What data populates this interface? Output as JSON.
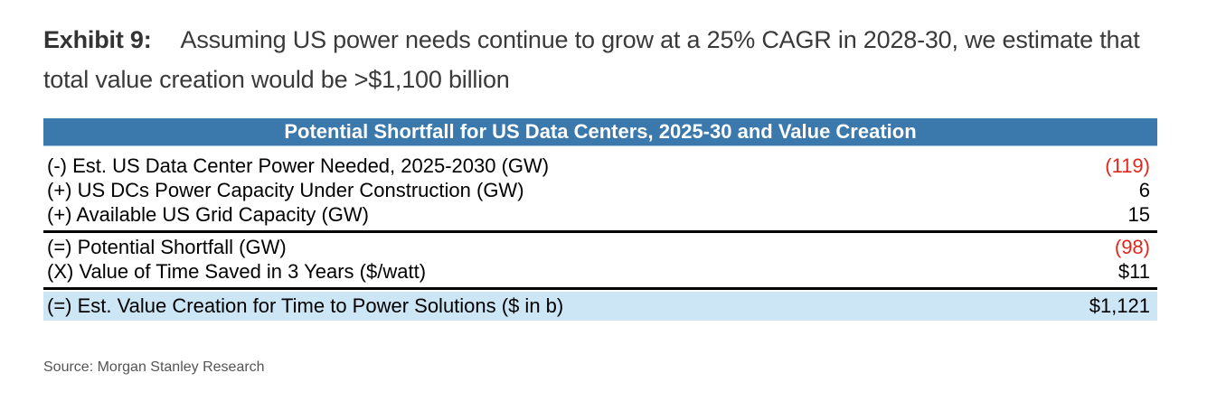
{
  "exhibit": {
    "label": "Exhibit 9:",
    "title": "Assuming US power needs continue to grow at a 25% CAGR in 2028-30, we estimate that total value creation would be >$1,100 billion"
  },
  "table": {
    "header": "Potential Shortfall for US Data Centers, 2025-30 and Value Creation",
    "rows": [
      {
        "label": "(-) Est. US Data Center Power Needed, 2025-2030 (GW)",
        "value": "(119)",
        "negative": true
      },
      {
        "label": "(+) US DCs Power Capacity Under Construction (GW)",
        "value": "6",
        "negative": false
      },
      {
        "label": "(+) Available US Grid Capacity (GW)",
        "value": "15",
        "negative": false
      },
      {
        "label": "(=) Potential Shortfall (GW)",
        "value": "(98)",
        "negative": true
      },
      {
        "label": "(X) Value of Time Saved in 3 Years ($/watt)",
        "value": "$11",
        "negative": false
      },
      {
        "label": "(=) Est. Value Creation for Time to Power Solutions ($ in b)",
        "value": "$1,121",
        "negative": false,
        "highlight": true
      }
    ]
  },
  "colors": {
    "header_bg": "#3b78ab",
    "negative": "#e0281c",
    "highlight_bg": "#cce6f6"
  },
  "source": "Source: Morgan Stanley Research"
}
